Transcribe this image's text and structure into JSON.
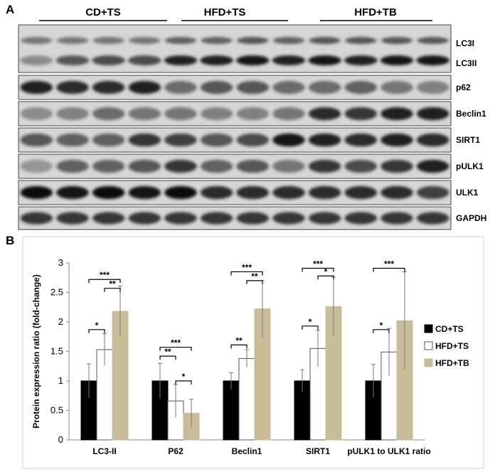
{
  "panels": {
    "a": "A",
    "b": "B"
  },
  "western_blot": {
    "groups": [
      "CD+TS",
      "HFD+TS",
      "HFD+TB"
    ],
    "rows": [
      {
        "label": "LC3I",
        "sub_label": "LC3II",
        "intensity": [
          0.45,
          0.45,
          0.45,
          0.45,
          0.55,
          0.55,
          0.6,
          0.55,
          0.6,
          0.6,
          0.6,
          0.6
        ],
        "intensity2": [
          0.35,
          0.6,
          0.65,
          0.65,
          0.85,
          0.85,
          0.9,
          0.85,
          0.9,
          0.85,
          0.9,
          0.9
        ]
      },
      {
        "label": "p62",
        "intensity": [
          0.85,
          0.8,
          0.8,
          0.85,
          0.5,
          0.6,
          0.6,
          0.5,
          0.5,
          0.55,
          0.45,
          0.4
        ]
      },
      {
        "label": "Beclin1",
        "intensity": [
          0.35,
          0.4,
          0.5,
          0.45,
          0.45,
          0.4,
          0.4,
          0.45,
          0.8,
          0.75,
          0.85,
          0.85
        ]
      },
      {
        "label": "SIRT1",
        "intensity": [
          0.6,
          0.55,
          0.55,
          0.75,
          0.7,
          0.6,
          0.65,
          0.9,
          0.85,
          0.8,
          0.85,
          0.8
        ]
      },
      {
        "label": "pULK1",
        "intensity": [
          0.3,
          0.55,
          0.55,
          0.6,
          0.75,
          0.55,
          0.6,
          0.45,
          0.75,
          0.65,
          0.75,
          0.85
        ]
      },
      {
        "label": "ULK1",
        "intensity": [
          0.95,
          0.9,
          0.95,
          0.9,
          0.95,
          0.8,
          0.8,
          0.8,
          0.8,
          0.8,
          0.8,
          0.7
        ]
      },
      {
        "label": "GAPDH",
        "intensity": [
          0.75,
          0.75,
          0.75,
          0.75,
          0.75,
          0.75,
          0.75,
          0.75,
          0.75,
          0.75,
          0.75,
          0.75
        ]
      }
    ]
  },
  "chart_data": {
    "type": "bar",
    "categories": [
      "LC3-II",
      "P62",
      "Beclin1",
      "SIRT1",
      "pULK1 to ULK1 ratio"
    ],
    "series": [
      {
        "name": "CD+TS",
        "color": "#000000",
        "values": [
          1.0,
          1.0,
          1.0,
          1.0,
          1.0
        ],
        "errors": [
          0.29,
          0.3,
          0.14,
          0.19,
          0.28
        ]
      },
      {
        "name": "HFD+TS",
        "color": "#ffffff",
        "values": [
          1.53,
          0.66,
          1.38,
          1.55,
          1.49
        ],
        "errors": [
          0.27,
          0.28,
          0.15,
          0.31,
          0.4
        ]
      },
      {
        "name": "HFD+TB",
        "color": "#c8bd98",
        "values": [
          2.18,
          0.45,
          2.22,
          2.26,
          2.02
        ],
        "errors": [
          0.43,
          0.24,
          0.48,
          0.5,
          0.83
        ]
      }
    ],
    "ylabel": "Protein expression ratio (fold-change)",
    "ylim": [
      0,
      3
    ],
    "yticks": [
      "0",
      "0.5",
      "1",
      "1.5",
      "2",
      "2.5",
      "3"
    ],
    "legend_position": "right",
    "significance": [
      {
        "category": 0,
        "from": 0,
        "to": 1,
        "label": "*",
        "y": 1.87
      },
      {
        "category": 0,
        "from": 0,
        "to": 2,
        "label": "***",
        "y": 2.72
      },
      {
        "category": 0,
        "from": 1,
        "to": 2,
        "label": "**",
        "y": 2.57
      },
      {
        "category": 1,
        "from": 0,
        "to": 1,
        "label": "**",
        "y": 1.42
      },
      {
        "category": 1,
        "from": 0,
        "to": 2,
        "label": "***",
        "y": 1.57
      },
      {
        "category": 1,
        "from": 1,
        "to": 2,
        "label": "*",
        "y": 1.0
      },
      {
        "category": 2,
        "from": 0,
        "to": 1,
        "label": "**",
        "y": 1.61
      },
      {
        "category": 2,
        "from": 0,
        "to": 2,
        "label": "***",
        "y": 2.85
      },
      {
        "category": 2,
        "from": 1,
        "to": 2,
        "label": "**",
        "y": 2.7
      },
      {
        "category": 3,
        "from": 0,
        "to": 1,
        "label": "*",
        "y": 1.93
      },
      {
        "category": 3,
        "from": 0,
        "to": 2,
        "label": "***",
        "y": 2.91
      },
      {
        "category": 3,
        "from": 1,
        "to": 2,
        "label": "*",
        "y": 2.78
      },
      {
        "category": 4,
        "from": 0,
        "to": 1,
        "label": "*",
        "y": 1.87
      },
      {
        "category": 4,
        "from": 0,
        "to": 2,
        "label": "***",
        "y": 2.91
      }
    ]
  }
}
